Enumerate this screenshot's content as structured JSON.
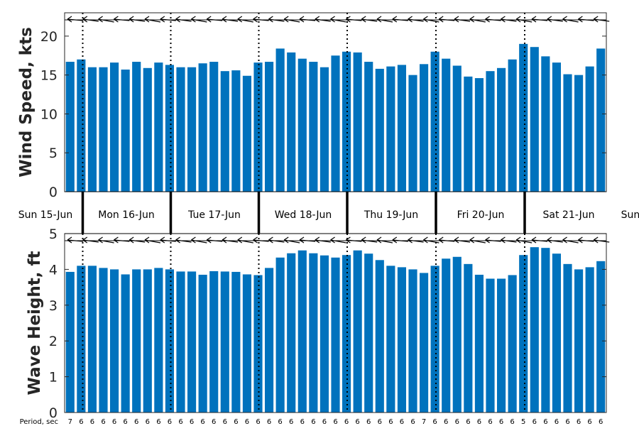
{
  "colors": {
    "bar": "#0072BD",
    "axis": "#262626",
    "grid": "#000000"
  },
  "chart_data": [
    {
      "type": "bar",
      "ylabel": "Wind Speed, kts",
      "ylim": [
        0,
        23
      ],
      "yticks": [
        0,
        5,
        10,
        15,
        20
      ],
      "values": [
        16.7,
        17.0,
        16.0,
        16.0,
        16.6,
        15.7,
        16.7,
        15.9,
        16.6,
        16.3,
        16.0,
        16.0,
        16.5,
        16.7,
        15.5,
        15.6,
        14.9,
        16.6,
        16.7,
        18.4,
        17.9,
        17.1,
        16.7,
        16.0,
        17.5,
        18.0,
        17.9,
        16.7,
        15.8,
        16.1,
        16.3,
        15.0,
        16.4,
        18.0,
        17.1,
        16.2,
        14.8,
        14.6,
        15.5,
        15.9,
        17.0,
        19.0,
        18.6,
        17.4,
        16.6,
        15.1,
        15.0,
        16.1,
        18.4
      ]
    },
    {
      "type": "bar",
      "ylabel": "Wave Height, ft",
      "ylim": [
        0,
        5
      ],
      "yticks": [
        0,
        1,
        2,
        3,
        4,
        5
      ],
      "values": [
        3.93,
        4.1,
        4.1,
        4.04,
        4.0,
        3.86,
        4.0,
        4.0,
        4.04,
        4.0,
        3.94,
        3.94,
        3.85,
        3.95,
        3.94,
        3.93,
        3.86,
        3.84,
        4.04,
        4.33,
        4.45,
        4.53,
        4.45,
        4.39,
        4.33,
        4.4,
        4.53,
        4.44,
        4.26,
        4.1,
        4.06,
        4.0,
        3.9,
        4.1,
        4.3,
        4.35,
        4.15,
        3.85,
        3.74,
        3.74,
        3.84,
        4.4,
        4.62,
        4.6,
        4.44,
        4.15,
        4.0,
        4.06,
        4.23
      ]
    }
  ],
  "day_labels": [
    "Sun 15-Jun",
    "Mon 16-Jun",
    "Tue 17-Jun",
    "Wed 18-Jun",
    "Thu 19-Jun",
    "Fri 20-Jun",
    "Sat 21-Jun",
    "Sun"
  ],
  "period_title": "Period, sec",
  "periods": [
    "7",
    "6",
    "6",
    "6",
    "6",
    "6",
    "6",
    "6",
    "6",
    "6",
    "6",
    "6",
    "6",
    "6",
    "6",
    "6",
    "6",
    "6",
    "6",
    "6",
    "6",
    "6",
    "6",
    "6",
    "6",
    "6",
    "6",
    "6",
    "6",
    "6",
    "6",
    "6",
    "7",
    "6",
    "6",
    "6",
    "6",
    "6",
    "6",
    "6",
    "6",
    "5",
    "6",
    "6",
    "6",
    "6",
    "6",
    "6",
    "6"
  ],
  "direction_arrows_count": 35
}
